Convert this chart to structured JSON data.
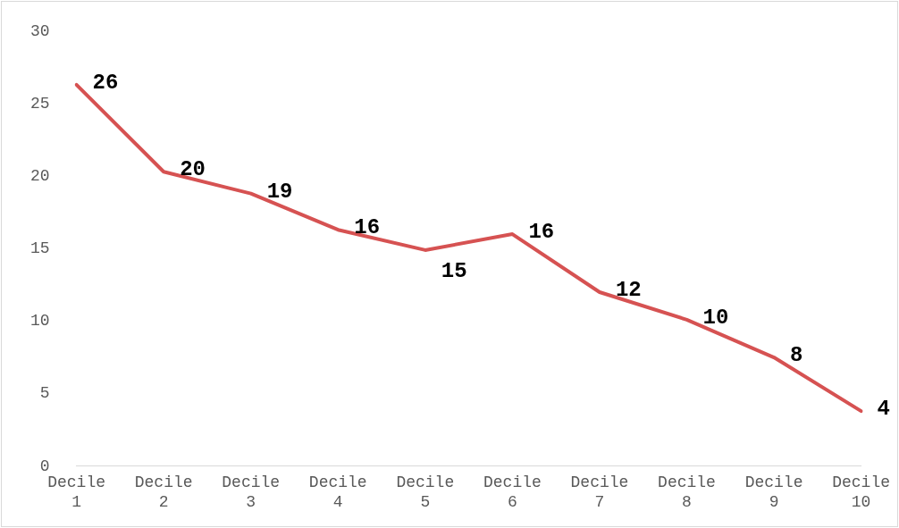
{
  "chart_data": {
    "type": "line",
    "categories": [
      "Decile 1",
      "Decile 2",
      "Decile 3",
      "Decile 4",
      "Decile 5",
      "Decile 6",
      "Decile 7",
      "Decile 8",
      "Decile 9",
      "Decile 10"
    ],
    "series": [
      {
        "color": "#d65252",
        "values": [
          26.3,
          20.3,
          18.8,
          16.3,
          14.9,
          16.0,
          12.0,
          10.1,
          7.5,
          3.8
        ],
        "value_labels": [
          "26",
          "20",
          "19",
          "16",
          "15",
          "16",
          "12",
          "10",
          "8",
          "4"
        ]
      }
    ],
    "ylim": [
      0,
      30
    ],
    "yticks": [
      0,
      5,
      10,
      15,
      20,
      25,
      30
    ],
    "grid": false,
    "legend": false,
    "marker": "none",
    "line_style": "solid"
  }
}
